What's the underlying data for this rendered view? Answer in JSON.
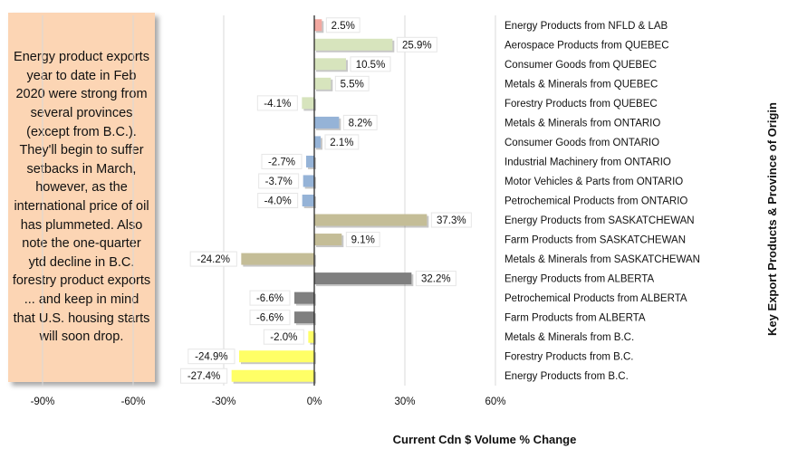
{
  "annotation": "Energy product exports year to date in Feb 2020 were strong from several provinces (except from B.C.). They'll begin to suffer setbacks in March, however, as the international price of oil has plummeted. Also note the one-quarter ytd decline in B.C. forestry product exports ... and keep in mind that U.S. housing starts will soon drop.",
  "chart_data": {
    "type": "bar",
    "orientation": "horizontal",
    "xlabel": "Current Cdn $ Volume % Change",
    "ylabel": "Key Export Products & Province of Origin",
    "xlim": [
      -100,
      60
    ],
    "x_ticks": [
      -90,
      -60,
      -30,
      0,
      30,
      60
    ],
    "x_tick_labels": [
      "-90%",
      "-60%",
      "-30%",
      "0%",
      "30%",
      "60%"
    ],
    "grid": "vertical",
    "categories": [
      "Energy Products from NFLD & LAB",
      "Aerospace Products from QUEBEC",
      "Consumer Goods from QUEBEC",
      "Metals & Minerals from QUEBEC",
      "Forestry Products from QUEBEC",
      "Metals & Minerals from ONTARIO",
      "Consumer Goods from ONTARIO",
      "Industrial Machinery from ONTARIO",
      "Motor Vehicles & Parts from ONTARIO",
      "Petrochemical Products from ONTARIO",
      "Energy Products from SASKATCHEWAN",
      "Farm Products from SASKATCHEWAN",
      "Metals & Minerals from SASKATCHEWAN",
      "Energy Products from ALBERTA",
      "Petrochemical Products from ALBERTA",
      "Farm Products from ALBERTA",
      "Metals & Minerals from B.C.",
      "Forestry Products from B.C.",
      "Energy Products from B.C."
    ],
    "values": [
      2.5,
      25.9,
      10.5,
      5.5,
      -4.1,
      8.2,
      2.1,
      -2.7,
      -3.7,
      -4.0,
      37.3,
      9.1,
      -24.2,
      32.2,
      -6.6,
      -6.6,
      -2.0,
      -24.9,
      -27.4
    ],
    "value_labels": [
      "2.5%",
      "25.9%",
      "10.5%",
      "5.5%",
      "-4.1%",
      "8.2%",
      "2.1%",
      "-2.7%",
      "-3.7%",
      "-4.0%",
      "37.3%",
      "9.1%",
      "-24.2%",
      "32.2%",
      "-6.6%",
      "-6.6%",
      "-2.0%",
      "-24.9%",
      "-27.4%"
    ],
    "bar_colors": [
      "#f2a8a0",
      "#d7e4bd",
      "#d7e4bd",
      "#d7e4bd",
      "#d7e4bd",
      "#95b3d7",
      "#95b3d7",
      "#95b3d7",
      "#95b3d7",
      "#95b3d7",
      "#c4bd97",
      "#c4bd97",
      "#c4bd97",
      "#7f7f7f",
      "#7f7f7f",
      "#7f7f7f",
      "#ffff66",
      "#ffff66",
      "#ffff66"
    ],
    "group_colors": {
      "NFLD & LAB": "#f2a8a0",
      "QUEBEC": "#d7e4bd",
      "ONTARIO": "#95b3d7",
      "SASKATCHEWAN": "#c4bd97",
      "ALBERTA": "#7f7f7f",
      "B.C.": "#ffff66"
    }
  }
}
